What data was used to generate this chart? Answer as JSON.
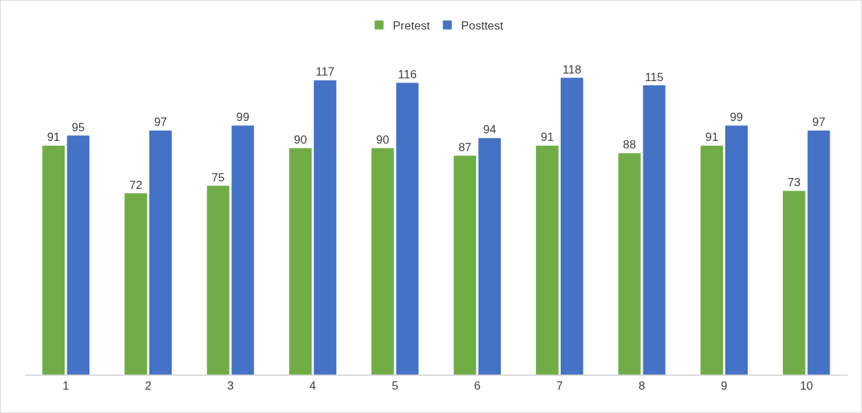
{
  "chart_data": {
    "type": "bar",
    "categories": [
      "1",
      "2",
      "3",
      "4",
      "5",
      "6",
      "7",
      "8",
      "9",
      "10"
    ],
    "series": [
      {
        "name": "Pretest",
        "color": "#70ad47",
        "values": [
          91,
          72,
          75,
          90,
          90,
          87,
          91,
          88,
          91,
          73
        ]
      },
      {
        "name": "Posttest",
        "color": "#4472c4",
        "values": [
          95,
          97,
          99,
          117,
          116,
          94,
          118,
          115,
          99,
          97
        ]
      }
    ],
    "data_labels": true,
    "legend": "top",
    "grid": false
  }
}
